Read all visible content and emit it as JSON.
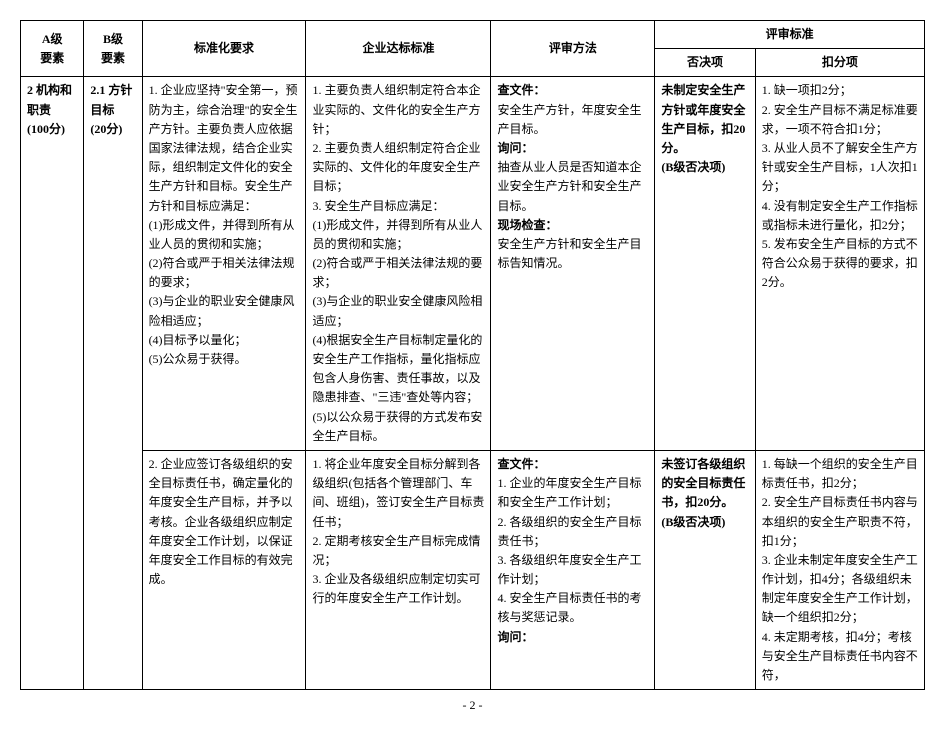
{
  "headers": {
    "a": "A级\n要素",
    "b": "B级\n要素",
    "req": "标准化要求",
    "std": "企业达标标准",
    "method": "评审方法",
    "criteria": "评审标准",
    "veto": "否决项",
    "deduct": "扣分项"
  },
  "rows": [
    {
      "a": "2 机构和职责\n(100分)",
      "b": "2.1 方针目标\n(20分)",
      "req": "1. 企业应坚持\"安全第一，预防为主，综合治理\"的安全生产方针。主要负责人应依据国家法律法规，结合企业实际，组织制定文件化的安全生产方针和目标。安全生产方针和目标应满足：\n(1)形成文件，并得到所有从业人员的贯彻和实施；\n(2)符合或严于相关法律法规的要求；\n(3)与企业的职业安全健康风险相适应；\n(4)目标予以量化；\n(5)公众易于获得。",
      "std": "1. 主要负责人组织制定符合本企业实际的、文件化的安全生产方针；\n2. 主要负责人组织制定符合企业实际的、文件化的年度安全生产目标；\n3. 安全生产目标应满足：\n(1)形成文件，并得到所有从业人员的贯彻和实施；\n(2)符合或严于相关法律法规的要求；\n(3)与企业的职业安全健康风险相适应；\n(4)根据安全生产目标制定量化的安全生产工作指标，量化指标应包含人身伤害、责任事故，以及隐患排查、\"三违\"查处等内容；\n(5)以公众易于获得的方式发布安全生产目标。",
      "method_pre": "查文件：",
      "method_body": "安全生产方针，年度安全生产目标。",
      "method_pre2": "询问：",
      "method_body2": "抽查从业人员是否知道本企业安全生产方针和安全生产目标。",
      "method_pre3": "现场检查：",
      "method_body3": "安全生产方针和安全生产目标告知情况。",
      "veto": "未制定安全生产方针或年度安全生产目标，扣20分。\n(B级否决项)",
      "deduct": "1. 缺一项扣2分；\n2. 安全生产目标不满足标准要求，一项不符合扣1分；\n3. 从业人员不了解安全生产方针或安全生产目标，1人次扣1分；\n4. 没有制定安全生产工作指标或指标未进行量化，扣2分；\n5. 发布安全生产目标的方式不符合公众易于获得的要求，扣2分。"
    },
    {
      "req": "2. 企业应签订各级组织的安全目标责任书，确定量化的年度安全生产目标，并予以考核。企业各级组织应制定年度安全工作计划，以保证年度安全工作目标的有效完成。",
      "std": "1. 将企业年度安全目标分解到各级组织(包括各个管理部门、车间、班组)，签订安全生产目标责任书；\n2. 定期考核安全生产目标完成情况；\n3. 企业及各级组织应制定切实可行的年度安全生产工作计划。",
      "method_pre": "查文件：",
      "method_body": "1. 企业的年度安全生产目标和安全生产工作计划；\n2. 各级组织的安全生产目标责任书；\n3. 各级组织年度安全生产工作计划；\n4. 安全生产目标责任书的考核与奖惩记录。",
      "method_pre2": "询问：",
      "method_body2": "",
      "veto": "未签订各级组织的安全目标责任书，扣20分。\n(B级否决项)",
      "deduct": "1. 每缺一个组织的安全生产目标责任书，扣2分；\n2. 安全生产目标责任书内容与本组织的安全生产职责不符，扣1分；\n3. 企业未制定年度安全生产工作计划，扣4分；各级组织未制定年度安全生产工作计划，缺一个组织扣2分；\n4. 未定期考核，扣4分；考核与安全生产目标责任书内容不符，"
    }
  ],
  "page_number": "- 2 -"
}
